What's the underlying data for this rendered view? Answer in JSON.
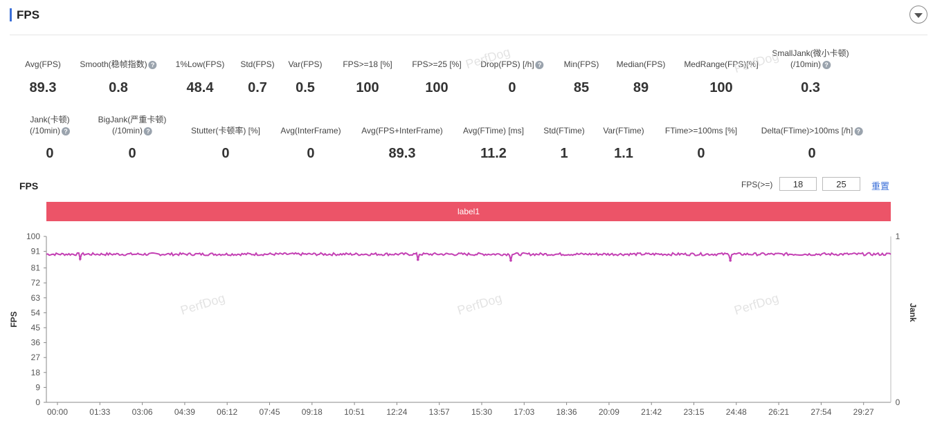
{
  "header": {
    "title": "FPS"
  },
  "metrics_row1": [
    {
      "label": "Avg(FPS)",
      "value": "89.3",
      "help": false
    },
    {
      "label": "Smooth(稳帧指数)",
      "value": "0.8",
      "help": true
    },
    {
      "label": "1%Low(FPS)",
      "value": "48.4",
      "help": false
    },
    {
      "label": "Std(FPS)",
      "value": "0.7",
      "help": false
    },
    {
      "label": "Var(FPS)",
      "value": "0.5",
      "help": false
    },
    {
      "label": "FPS>=18 [%]",
      "value": "100",
      "help": false
    },
    {
      "label": "FPS>=25 [%]",
      "value": "100",
      "help": false
    },
    {
      "label": "Drop(FPS) [/h]",
      "value": "0",
      "help": true
    },
    {
      "label": "Min(FPS)",
      "value": "85",
      "help": false
    },
    {
      "label": "Median(FPS)",
      "value": "89",
      "help": false
    },
    {
      "label": "MedRange(FPS)[%]",
      "value": "100",
      "help": false
    },
    {
      "label": "SmallJank(微小卡顿)",
      "label2": "(/10min)",
      "value": "0.3",
      "help": true
    }
  ],
  "metrics_row2": [
    {
      "label": "Jank(卡顿)",
      "label2": "(/10min)",
      "value": "0",
      "help": true
    },
    {
      "label": "BigJank(严重卡顿)",
      "label2": "(/10min)",
      "value": "0",
      "help": true
    },
    {
      "label": "Stutter(卡顿率) [%]",
      "value": "0",
      "help": false
    },
    {
      "label": "Avg(InterFrame)",
      "value": "0",
      "help": false
    },
    {
      "label": "Avg(FPS+InterFrame)",
      "value": "89.3",
      "help": false
    },
    {
      "label": "Avg(FTime) [ms]",
      "value": "11.2",
      "help": false
    },
    {
      "label": "Std(FTime)",
      "value": "1",
      "help": false
    },
    {
      "label": "Var(FTime)",
      "value": "1.1",
      "help": false
    },
    {
      "label": "FTime>=100ms [%]",
      "value": "0",
      "help": false
    },
    {
      "label": "Delta(FTime)>100ms [/h]",
      "value": "0",
      "help": true
    }
  ],
  "help_glyph": "?",
  "watermark": "PerfDog",
  "chart_section": {
    "title": "FPS",
    "threshold_label": "FPS(>=)",
    "threshold1": "18",
    "threshold2": "25",
    "reset_label": "重置",
    "band_label": "label1",
    "band_color": "#ec5468"
  },
  "chart_data": {
    "type": "line",
    "ylabel": "FPS",
    "y2label": "Jank",
    "ylim": [
      0,
      100
    ],
    "y_ticks": [
      "0",
      "9",
      "18",
      "27",
      "36",
      "45",
      "54",
      "63",
      "72",
      "81",
      "91",
      "100"
    ],
    "y2_ticks": [
      "0",
      "1"
    ],
    "x_ticks": [
      "00:00",
      "01:33",
      "03:06",
      "04:39",
      "06:12",
      "07:45",
      "09:18",
      "10:51",
      "12:24",
      "13:57",
      "15:30",
      "17:03",
      "18:36",
      "20:09",
      "21:42",
      "23:15",
      "24:48",
      "26:21",
      "27:54",
      "29:27"
    ],
    "series": [
      {
        "color": "#c33fb3",
        "mean": 89.3,
        "min": 85,
        "max": 91,
        "dips": [
          [
            0.04,
            86.5
          ],
          [
            0.44,
            86
          ],
          [
            0.55,
            85.5
          ],
          [
            0.81,
            85.5
          ]
        ]
      }
    ],
    "grid": false
  }
}
